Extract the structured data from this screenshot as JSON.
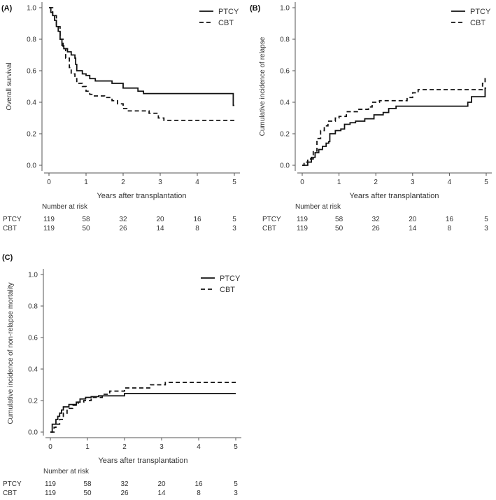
{
  "chart_data": [
    {
      "type": "line",
      "panel_label": "(A)",
      "ylabel": "Overall survival",
      "xlabel": "Years after transplantation",
      "xlim": [
        0,
        5
      ],
      "ylim": [
        0,
        1
      ],
      "xticks": [
        "0",
        "1",
        "2",
        "3",
        "4",
        "5"
      ],
      "yticks": [
        "0.0",
        "0.2",
        "0.4",
        "0.6",
        "0.8",
        "1.0"
      ],
      "legend": {
        "placement": "top-right",
        "entries": [
          "PTCY",
          "CBT"
        ]
      },
      "series": [
        {
          "name": "PTCY",
          "style": "solid",
          "points": [
            [
              0,
              1
            ],
            [
              0.05,
              0.97
            ],
            [
              0.1,
              0.95
            ],
            [
              0.15,
              0.92
            ],
            [
              0.2,
              0.88
            ],
            [
              0.25,
              0.85
            ],
            [
              0.3,
              0.8
            ],
            [
              0.35,
              0.76
            ],
            [
              0.4,
              0.74
            ],
            [
              0.5,
              0.72
            ],
            [
              0.6,
              0.7
            ],
            [
              0.7,
              0.68
            ],
            [
              0.72,
              0.64
            ],
            [
              0.75,
              0.6
            ],
            [
              0.9,
              0.58
            ],
            [
              1.0,
              0.57
            ],
            [
              1.1,
              0.55
            ],
            [
              1.25,
              0.535
            ],
            [
              1.7,
              0.52
            ],
            [
              2.0,
              0.49
            ],
            [
              2.4,
              0.47
            ],
            [
              2.55,
              0.455
            ],
            [
              4.97,
              0.38
            ],
            [
              5,
              0.38
            ]
          ]
        },
        {
          "name": "CBT",
          "style": "dashed",
          "points": [
            [
              0,
              1
            ],
            [
              0.1,
              0.95
            ],
            [
              0.2,
              0.88
            ],
            [
              0.3,
              0.8
            ],
            [
              0.38,
              0.74
            ],
            [
              0.45,
              0.68
            ],
            [
              0.55,
              0.62
            ],
            [
              0.6,
              0.58
            ],
            [
              0.7,
              0.55
            ],
            [
              0.75,
              0.52
            ],
            [
              0.9,
              0.5
            ],
            [
              1.0,
              0.47
            ],
            [
              1.1,
              0.45
            ],
            [
              1.2,
              0.44
            ],
            [
              1.5,
              0.43
            ],
            [
              1.7,
              0.41
            ],
            [
              1.85,
              0.39
            ],
            [
              2.0,
              0.36
            ],
            [
              2.1,
              0.345
            ],
            [
              2.7,
              0.33
            ],
            [
              2.95,
              0.3
            ],
            [
              3.1,
              0.285
            ],
            [
              5,
              0.285
            ]
          ]
        }
      ],
      "risk_table": {
        "title": "Number at risk",
        "rows": [
          {
            "name": "PTCY",
            "values": [
              "119",
              "58",
              "32",
              "20",
              "16",
              "5"
            ]
          },
          {
            "name": "CBT",
            "values": [
              "119",
              "50",
              "26",
              "14",
              "8",
              "3"
            ]
          }
        ]
      }
    },
    {
      "type": "line",
      "panel_label": "(B)",
      "ylabel": "Cumulative incidence of relapse",
      "xlabel": "Years after transplantation",
      "xlim": [
        0,
        5
      ],
      "ylim": [
        0,
        1
      ],
      "xticks": [
        "0",
        "1",
        "2",
        "3",
        "4",
        "5"
      ],
      "yticks": [
        "0.0",
        "0.2",
        "0.4",
        "0.6",
        "0.8",
        "1.0"
      ],
      "legend": {
        "placement": "top-right",
        "entries": [
          "PTCY",
          "CBT"
        ]
      },
      "series": [
        {
          "name": "PTCY",
          "style": "solid",
          "points": [
            [
              0,
              0
            ],
            [
              0.15,
              0.02
            ],
            [
              0.25,
              0.05
            ],
            [
              0.35,
              0.08
            ],
            [
              0.45,
              0.1
            ],
            [
              0.55,
              0.12
            ],
            [
              0.65,
              0.14
            ],
            [
              0.72,
              0.15
            ],
            [
              0.75,
              0.2
            ],
            [
              0.9,
              0.22
            ],
            [
              1.05,
              0.23
            ],
            [
              1.15,
              0.26
            ],
            [
              1.3,
              0.27
            ],
            [
              1.45,
              0.28
            ],
            [
              1.7,
              0.295
            ],
            [
              1.95,
              0.32
            ],
            [
              2.2,
              0.335
            ],
            [
              2.35,
              0.36
            ],
            [
              2.55,
              0.375
            ],
            [
              4.5,
              0.4
            ],
            [
              4.6,
              0.435
            ],
            [
              4.97,
              0.49
            ],
            [
              5,
              0.49
            ]
          ]
        },
        {
          "name": "CBT",
          "style": "dashed",
          "points": [
            [
              0,
              0
            ],
            [
              0.05,
              0.02
            ],
            [
              0.15,
              0.04
            ],
            [
              0.3,
              0.09
            ],
            [
              0.4,
              0.17
            ],
            [
              0.5,
              0.22
            ],
            [
              0.6,
              0.25
            ],
            [
              0.7,
              0.28
            ],
            [
              0.9,
              0.3
            ],
            [
              1.0,
              0.31
            ],
            [
              1.2,
              0.34
            ],
            [
              1.5,
              0.355
            ],
            [
              1.8,
              0.37
            ],
            [
              1.9,
              0.4
            ],
            [
              2.1,
              0.41
            ],
            [
              2.85,
              0.43
            ],
            [
              3.0,
              0.46
            ],
            [
              3.15,
              0.48
            ],
            [
              4.9,
              0.52
            ],
            [
              4.97,
              0.55
            ],
            [
              5,
              0.55
            ]
          ]
        }
      ],
      "risk_table": {
        "title": "Number at risk",
        "rows": [
          {
            "name": "PTCY",
            "values": [
              "119",
              "58",
              "32",
              "20",
              "16",
              "5"
            ]
          },
          {
            "name": "CBT",
            "values": [
              "119",
              "50",
              "26",
              "14",
              "8",
              "3"
            ]
          }
        ]
      }
    },
    {
      "type": "line",
      "panel_label": "(C)",
      "ylabel": "Cumulative incidence of non-relapse mortality",
      "xlabel": "Years after transplantation",
      "xlim": [
        0,
        5
      ],
      "ylim": [
        0,
        1
      ],
      "xticks": [
        "0",
        "1",
        "2",
        "3",
        "4",
        "5"
      ],
      "yticks": [
        "0.0",
        "0.2",
        "0.4",
        "0.6",
        "0.8",
        "1.0"
      ],
      "legend": {
        "placement": "top-right",
        "entries": [
          "PTCY",
          "CBT"
        ]
      },
      "series": [
        {
          "name": "PTCY",
          "style": "solid",
          "points": [
            [
              0,
              0
            ],
            [
              0.05,
              0.05
            ],
            [
              0.15,
              0.08
            ],
            [
              0.2,
              0.1
            ],
            [
              0.25,
              0.12
            ],
            [
              0.3,
              0.14
            ],
            [
              0.35,
              0.16
            ],
            [
              0.5,
              0.175
            ],
            [
              0.7,
              0.19
            ],
            [
              0.8,
              0.21
            ],
            [
              0.95,
              0.22
            ],
            [
              1.1,
              0.225
            ],
            [
              1.3,
              0.23
            ],
            [
              2.0,
              0.245
            ],
            [
              5,
              0.245
            ]
          ]
        },
        {
          "name": "CBT",
          "style": "dashed",
          "points": [
            [
              0,
              0
            ],
            [
              0.1,
              0.03
            ],
            [
              0.15,
              0.05
            ],
            [
              0.25,
              0.08
            ],
            [
              0.35,
              0.12
            ],
            [
              0.45,
              0.15
            ],
            [
              0.6,
              0.17
            ],
            [
              0.75,
              0.19
            ],
            [
              0.9,
              0.2
            ],
            [
              1.1,
              0.22
            ],
            [
              1.4,
              0.24
            ],
            [
              1.6,
              0.26
            ],
            [
              2.0,
              0.28
            ],
            [
              2.7,
              0.3
            ],
            [
              3.1,
              0.315
            ],
            [
              5,
              0.315
            ]
          ]
        }
      ],
      "risk_table": {
        "title": "Number at risk",
        "rows": [
          {
            "name": "PTCY",
            "values": [
              "119",
              "58",
              "32",
              "20",
              "16",
              "5"
            ]
          },
          {
            "name": "CBT",
            "values": [
              "119",
              "50",
              "26",
              "14",
              "8",
              "3"
            ]
          }
        ]
      }
    }
  ]
}
